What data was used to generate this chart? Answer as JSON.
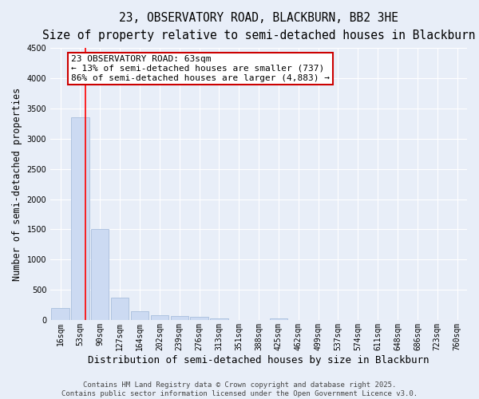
{
  "title": "23, OBSERVATORY ROAD, BLACKBURN, BB2 3HE",
  "subtitle": "Size of property relative to semi-detached houses in Blackburn",
  "xlabel": "Distribution of semi-detached houses by size in Blackburn",
  "ylabel": "Number of semi-detached properties",
  "bar_labels": [
    "16sqm",
    "53sqm",
    "90sqm",
    "127sqm",
    "164sqm",
    "202sqm",
    "239sqm",
    "276sqm",
    "313sqm",
    "351sqm",
    "388sqm",
    "425sqm",
    "462sqm",
    "499sqm",
    "537sqm",
    "574sqm",
    "611sqm",
    "648sqm",
    "686sqm",
    "723sqm",
    "760sqm"
  ],
  "bar_values": [
    200,
    3350,
    1500,
    370,
    140,
    75,
    60,
    55,
    30,
    0,
    0,
    30,
    0,
    0,
    0,
    0,
    0,
    0,
    0,
    0,
    0
  ],
  "bar_color": "#ccdaf2",
  "bar_edge_color": "#a8bedd",
  "ylim": [
    0,
    4500
  ],
  "yticks": [
    0,
    500,
    1000,
    1500,
    2000,
    2500,
    3000,
    3500,
    4000,
    4500
  ],
  "red_line_x": 1.28,
  "annotation_line1": "23 OBSERVATORY ROAD: 63sqm",
  "annotation_line2": "← 13% of semi-detached houses are smaller (737)",
  "annotation_line3": "86% of semi-detached houses are larger (4,883) →",
  "annotation_box_color": "#ffffff",
  "annotation_box_edge": "#cc0000",
  "background_color": "#e8eef8",
  "grid_color": "#ffffff",
  "footer_text": "Contains HM Land Registry data © Crown copyright and database right 2025.\nContains public sector information licensed under the Open Government Licence v3.0.",
  "title_fontsize": 10.5,
  "subtitle_fontsize": 9.5,
  "xlabel_fontsize": 9,
  "ylabel_fontsize": 8.5,
  "tick_fontsize": 7,
  "annotation_fontsize": 8,
  "footer_fontsize": 6.5
}
